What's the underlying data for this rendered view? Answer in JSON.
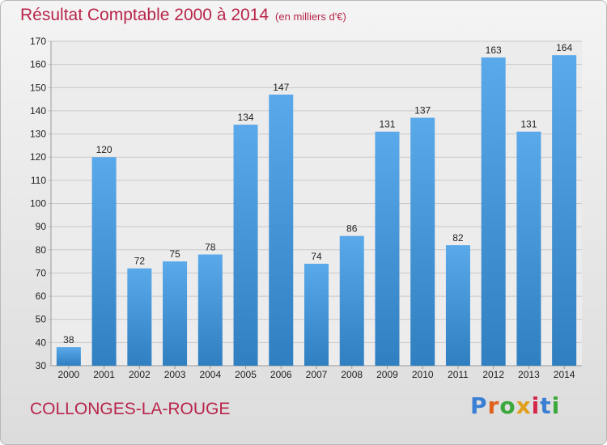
{
  "header": {
    "title": "Résultat Comptable 2000 à 2014",
    "subtitle": "(en milliers d'€)"
  },
  "footer": {
    "commune": "COLLONGES-LA-ROUGE",
    "logo_text": "Proxiti",
    "logo_colors": [
      "#3a7fd4",
      "#e0611c",
      "#3aa83a",
      "#e0a01c",
      "#d4254a",
      "#3a7fd4",
      "#3aa83a"
    ]
  },
  "colors": {
    "bar_light": "#5aa9ea",
    "bar_dark": "#2f7fc1",
    "grid": "#c8c8c8"
  },
  "chart_data": {
    "type": "bar",
    "title": "Résultat Comptable 2000 à 2014",
    "subtitle": "(en milliers d'€)",
    "categories": [
      "2000",
      "2001",
      "2002",
      "2003",
      "2004",
      "2005",
      "2006",
      "2007",
      "2008",
      "2009",
      "2010",
      "2011",
      "2012",
      "2013",
      "2014"
    ],
    "values": [
      38,
      120,
      72,
      75,
      78,
      134,
      147,
      74,
      86,
      131,
      137,
      82,
      163,
      131,
      164
    ],
    "ylim": [
      30,
      170
    ],
    "yticks": [
      30,
      40,
      50,
      60,
      70,
      80,
      90,
      100,
      110,
      120,
      130,
      140,
      150,
      160,
      170
    ],
    "grid": true,
    "xlabel": "",
    "ylabel": ""
  }
}
